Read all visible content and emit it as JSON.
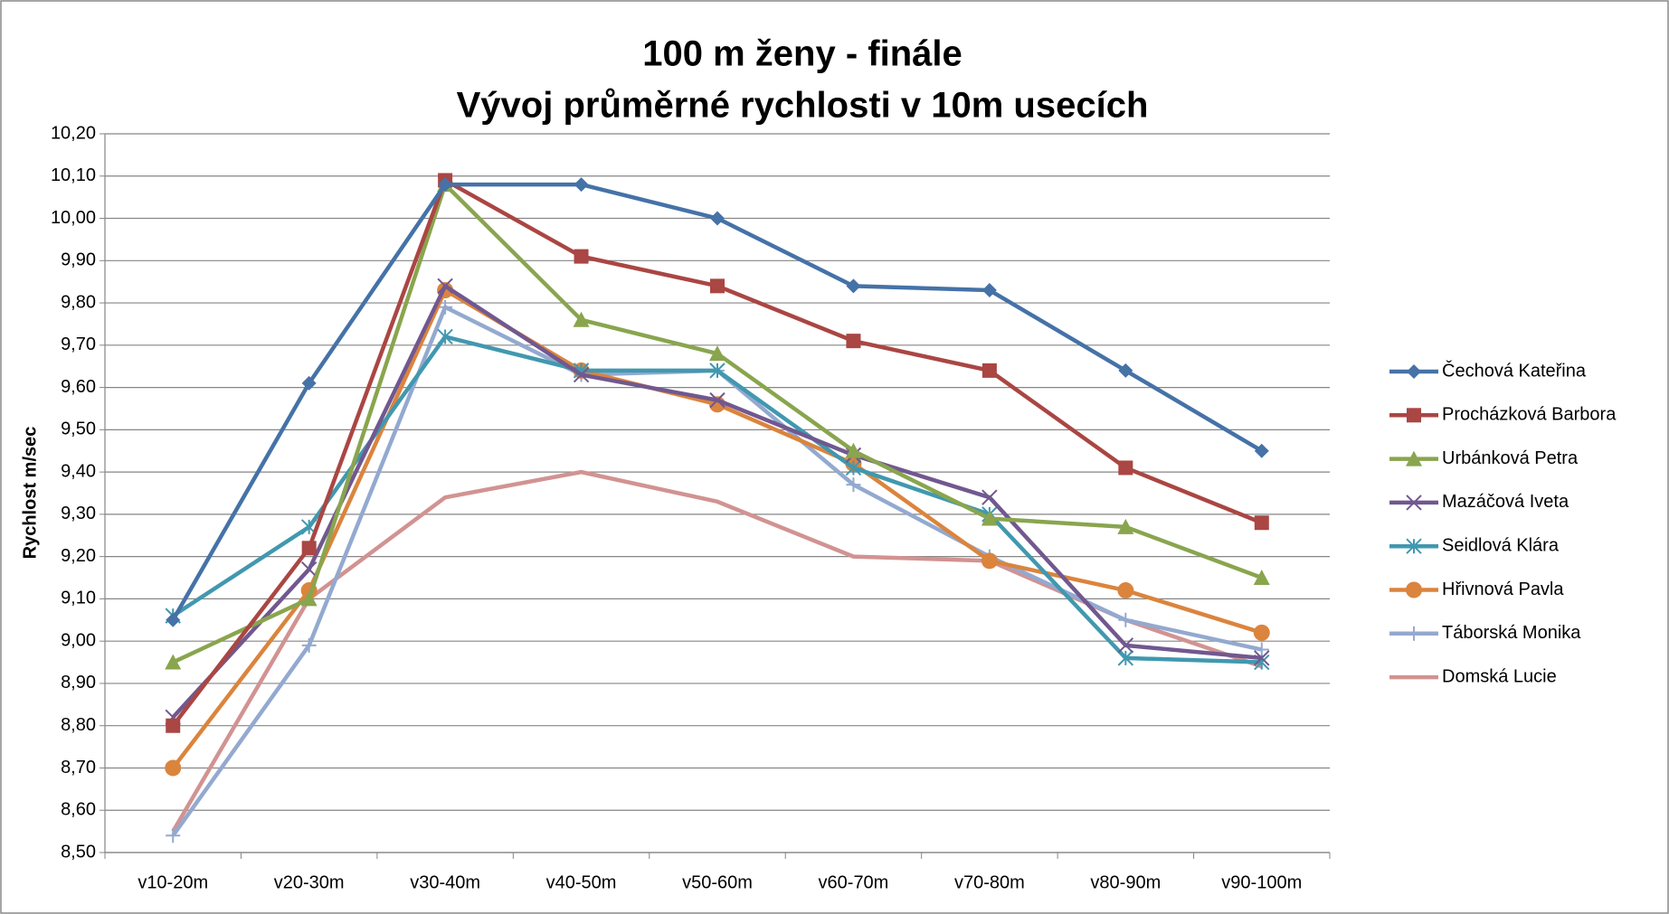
{
  "chart_data": {
    "type": "line",
    "title": [
      "100 m ženy - finále",
      "Vývoj průměrné rychlosti v 10m usecích"
    ],
    "y_label": "Rychlost m/sec",
    "categories": [
      "v10-20m",
      "v20-30m",
      "v30-40m",
      "v40-50m",
      "v50-60m",
      "v60-70m",
      "v70-80m",
      "v80-90m",
      "v90-100m"
    ],
    "ylim": [
      8.5,
      10.2
    ],
    "yticks": [
      {
        "value": 8.5,
        "label": "8,50"
      },
      {
        "value": 8.6,
        "label": "8,60"
      },
      {
        "value": 8.7,
        "label": "8,70"
      },
      {
        "value": 8.8,
        "label": "8,80"
      },
      {
        "value": 8.9,
        "label": "8,90"
      },
      {
        "value": 9.0,
        "label": "9,00"
      },
      {
        "value": 9.1,
        "label": "9,10"
      },
      {
        "value": 9.2,
        "label": "9,20"
      },
      {
        "value": 9.3,
        "label": "9,30"
      },
      {
        "value": 9.4,
        "label": "9,40"
      },
      {
        "value": 9.5,
        "label": "9,50"
      },
      {
        "value": 9.6,
        "label": "9,60"
      },
      {
        "value": 9.7,
        "label": "9,70"
      },
      {
        "value": 9.8,
        "label": "9,80"
      },
      {
        "value": 9.9,
        "label": "9,90"
      },
      {
        "value": 10.0,
        "label": "10,00"
      },
      {
        "value": 10.1,
        "label": "10,10"
      },
      {
        "value": 10.2,
        "label": "10,20"
      }
    ],
    "grid": true,
    "legend": "right",
    "series": [
      {
        "name": "Čechová Kateřina",
        "color": "#4572a7",
        "marker": "diamond",
        "values": [
          9.05,
          9.61,
          10.08,
          10.08,
          10.0,
          9.84,
          9.83,
          9.64,
          9.45
        ]
      },
      {
        "name": "Procházková Barbora",
        "color": "#aa4643",
        "marker": "square",
        "values": [
          8.8,
          9.22,
          10.09,
          9.91,
          9.84,
          9.71,
          9.64,
          9.41,
          9.28
        ]
      },
      {
        "name": "Urbánková Petra",
        "color": "#89a54e",
        "marker": "triangle",
        "values": [
          8.95,
          9.1,
          10.08,
          9.76,
          9.68,
          9.45,
          9.29,
          9.27,
          9.15
        ]
      },
      {
        "name": "Mazáčová Iveta",
        "color": "#71588f",
        "marker": "x",
        "values": [
          8.82,
          9.17,
          9.84,
          9.63,
          9.57,
          9.44,
          9.34,
          8.99,
          8.96
        ]
      },
      {
        "name": "Seidlová Klára",
        "color": "#4198af",
        "marker": "asterisk",
        "values": [
          9.06,
          9.27,
          9.72,
          9.64,
          9.64,
          9.41,
          9.3,
          8.96,
          8.95
        ]
      },
      {
        "name": "Hřivnová Pavla",
        "color": "#db843d",
        "marker": "circle",
        "values": [
          8.7,
          9.12,
          9.83,
          9.64,
          9.56,
          9.42,
          9.19,
          9.12,
          9.02
        ]
      },
      {
        "name": "Táborská Monika",
        "color": "#93a9cf",
        "marker": "plus",
        "values": [
          8.54,
          8.99,
          9.79,
          9.63,
          9.64,
          9.37,
          9.2,
          9.05,
          8.98
        ]
      },
      {
        "name": "Domská Lucie",
        "color": "#d19392",
        "marker": "none",
        "values": [
          8.55,
          9.1,
          9.34,
          9.4,
          9.33,
          9.2,
          9.19,
          9.05,
          8.94
        ]
      }
    ]
  }
}
